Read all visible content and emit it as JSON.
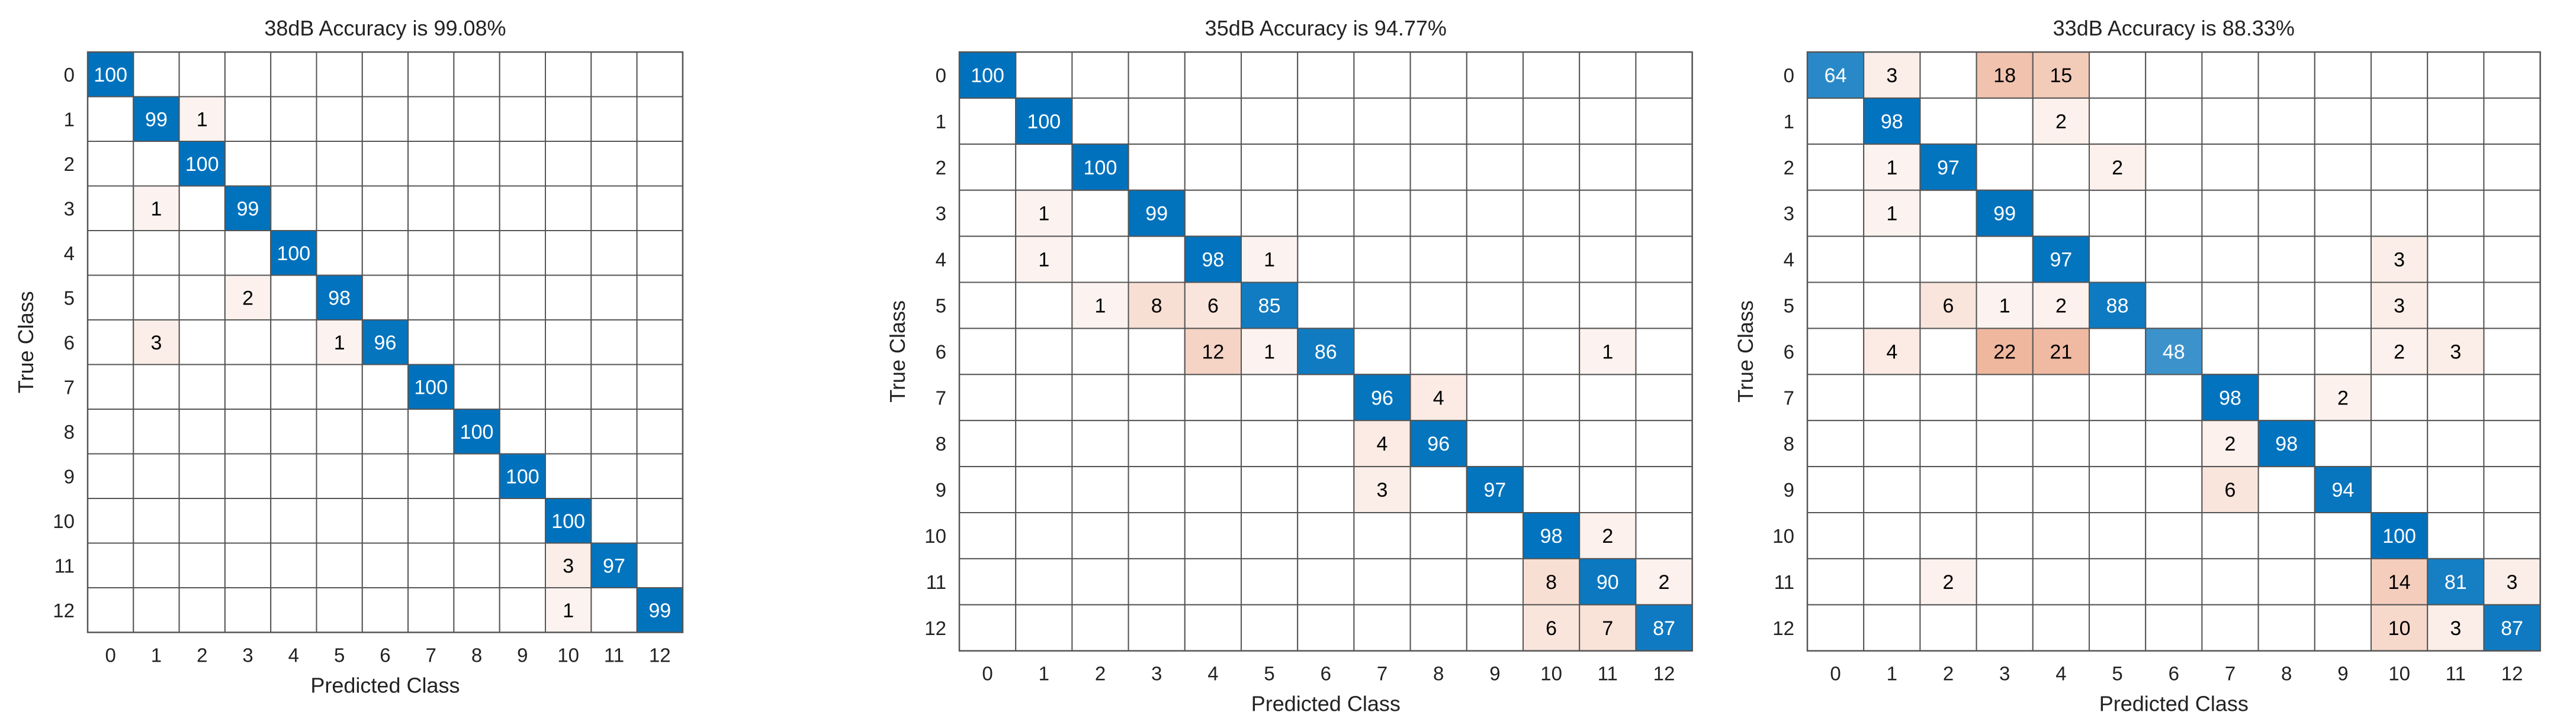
{
  "chart_data": [
    {
      "type": "heatmap",
      "title": "38dB Accuracy is 99.08%",
      "xlabel": "Predicted Class",
      "ylabel": "True Class",
      "x_categories": [
        "0",
        "1",
        "2",
        "3",
        "4",
        "5",
        "6",
        "7",
        "8",
        "9",
        "10",
        "11",
        "12"
      ],
      "y_categories": [
        "0",
        "1",
        "2",
        "3",
        "4",
        "5",
        "6",
        "7",
        "8",
        "9",
        "10",
        "11",
        "12"
      ],
      "colors": {
        "diagonal": "#0072BD",
        "off_diagonal": "#D95319",
        "grid": "#555555",
        "text_light": "#ffffff",
        "text_dark": "#000000"
      },
      "cells": [
        [
          0,
          0,
          100
        ],
        [
          1,
          1,
          99
        ],
        [
          1,
          2,
          1
        ],
        [
          2,
          2,
          100
        ],
        [
          3,
          1,
          1
        ],
        [
          3,
          3,
          99
        ],
        [
          4,
          4,
          100
        ],
        [
          5,
          3,
          2
        ],
        [
          5,
          5,
          98
        ],
        [
          6,
          1,
          3
        ],
        [
          6,
          5,
          1
        ],
        [
          6,
          6,
          96
        ],
        [
          7,
          7,
          100
        ],
        [
          8,
          8,
          100
        ],
        [
          9,
          9,
          100
        ],
        [
          10,
          10,
          100
        ],
        [
          11,
          10,
          3
        ],
        [
          11,
          11,
          97
        ],
        [
          12,
          10,
          1
        ],
        [
          12,
          12,
          99
        ]
      ]
    },
    {
      "type": "heatmap",
      "title": "35dB Accuracy is 94.77%",
      "xlabel": "Predicted Class",
      "ylabel": "True Class",
      "x_categories": [
        "0",
        "1",
        "2",
        "3",
        "4",
        "5",
        "6",
        "7",
        "8",
        "9",
        "10",
        "11",
        "12"
      ],
      "y_categories": [
        "0",
        "1",
        "2",
        "3",
        "4",
        "5",
        "6",
        "7",
        "8",
        "9",
        "10",
        "11",
        "12"
      ],
      "colors": {
        "diagonal": "#0072BD",
        "off_diagonal": "#D95319",
        "grid": "#555555",
        "text_light": "#ffffff",
        "text_dark": "#000000"
      },
      "cells": [
        [
          0,
          0,
          100
        ],
        [
          1,
          1,
          100
        ],
        [
          2,
          2,
          100
        ],
        [
          3,
          1,
          1
        ],
        [
          3,
          3,
          99
        ],
        [
          4,
          1,
          1
        ],
        [
          4,
          4,
          98
        ],
        [
          4,
          5,
          1
        ],
        [
          5,
          2,
          1
        ],
        [
          5,
          3,
          8
        ],
        [
          5,
          4,
          6
        ],
        [
          5,
          5,
          85
        ],
        [
          6,
          4,
          12
        ],
        [
          6,
          5,
          1
        ],
        [
          6,
          6,
          86
        ],
        [
          6,
          11,
          1
        ],
        [
          7,
          7,
          96
        ],
        [
          7,
          8,
          4
        ],
        [
          8,
          7,
          4
        ],
        [
          8,
          8,
          96
        ],
        [
          9,
          7,
          3
        ],
        [
          9,
          9,
          97
        ],
        [
          10,
          10,
          98
        ],
        [
          10,
          11,
          2
        ],
        [
          11,
          10,
          8
        ],
        [
          11,
          11,
          90
        ],
        [
          11,
          12,
          2
        ],
        [
          12,
          10,
          6
        ],
        [
          12,
          11,
          7
        ],
        [
          12,
          12,
          87
        ]
      ]
    },
    {
      "type": "heatmap",
      "title": "33dB Accuracy is 88.33%",
      "xlabel": "Predicted Class",
      "ylabel": "True Class",
      "x_categories": [
        "0",
        "1",
        "2",
        "3",
        "4",
        "5",
        "6",
        "7",
        "8",
        "9",
        "10",
        "11",
        "12"
      ],
      "y_categories": [
        "0",
        "1",
        "2",
        "3",
        "4",
        "5",
        "6",
        "7",
        "8",
        "9",
        "10",
        "11",
        "12"
      ],
      "colors": {
        "diagonal": "#0072BD",
        "off_diagonal": "#D95319",
        "grid": "#555555",
        "text_light": "#ffffff",
        "text_dark": "#000000"
      },
      "cells": [
        [
          0,
          0,
          64
        ],
        [
          0,
          1,
          3
        ],
        [
          0,
          3,
          18
        ],
        [
          0,
          4,
          15
        ],
        [
          1,
          1,
          98
        ],
        [
          1,
          4,
          2
        ],
        [
          2,
          1,
          1
        ],
        [
          2,
          2,
          97
        ],
        [
          2,
          5,
          2
        ],
        [
          3,
          1,
          1
        ],
        [
          3,
          3,
          99
        ],
        [
          4,
          4,
          97
        ],
        [
          4,
          10,
          3
        ],
        [
          5,
          2,
          6
        ],
        [
          5,
          3,
          1
        ],
        [
          5,
          4,
          2
        ],
        [
          5,
          5,
          88
        ],
        [
          5,
          10,
          3
        ],
        [
          6,
          1,
          4
        ],
        [
          6,
          3,
          22
        ],
        [
          6,
          4,
          21
        ],
        [
          6,
          6,
          48
        ],
        [
          6,
          10,
          2
        ],
        [
          6,
          11,
          3
        ],
        [
          7,
          7,
          98
        ],
        [
          7,
          9,
          2
        ],
        [
          8,
          7,
          2
        ],
        [
          8,
          8,
          98
        ],
        [
          9,
          7,
          6
        ],
        [
          9,
          9,
          94
        ],
        [
          10,
          10,
          100
        ],
        [
          11,
          2,
          2
        ],
        [
          11,
          10,
          14
        ],
        [
          11,
          11,
          81
        ],
        [
          11,
          12,
          3
        ],
        [
          12,
          10,
          10
        ],
        [
          12,
          11,
          3
        ],
        [
          12,
          12,
          87
        ]
      ]
    }
  ]
}
